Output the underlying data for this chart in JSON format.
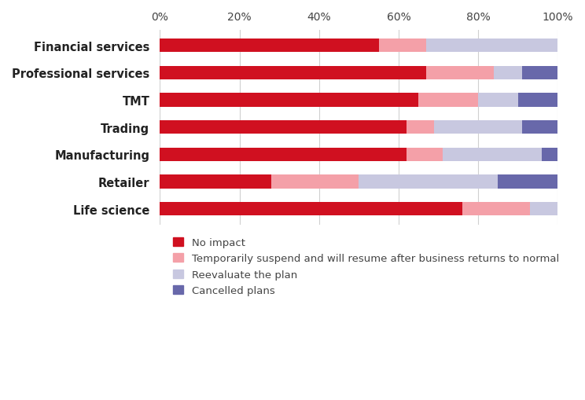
{
  "categories": [
    "Financial services",
    "Professional services",
    "TMT",
    "Trading",
    "Manufacturing",
    "Retailer",
    "Life science"
  ],
  "series": {
    "No impact": [
      55,
      67,
      65,
      62,
      62,
      28,
      76
    ],
    "Temporarily suspend and will resume after business returns to normal": [
      12,
      17,
      15,
      7,
      9,
      22,
      17
    ],
    "Reevaluate the plan": [
      33,
      7,
      10,
      22,
      25,
      35,
      7
    ],
    "Cancelled plans": [
      0,
      9,
      10,
      9,
      4,
      15,
      0
    ]
  },
  "colors": {
    "No impact": "#d01020",
    "Temporarily suspend and will resume after business returns to normal": "#f4a0a8",
    "Reevaluate the plan": "#c8c8e0",
    "Cancelled plans": "#6868aa"
  },
  "legend_order": [
    "No impact",
    "Temporarily suspend and will resume after business returns to normal",
    "Reevaluate the plan",
    "Cancelled plans"
  ],
  "xlim": [
    0,
    100
  ],
  "xtick_labels": [
    "0%",
    "20%",
    "40%",
    "60%",
    "80%",
    "100%"
  ],
  "xtick_values": [
    0,
    20,
    40,
    60,
    80,
    100
  ],
  "background_color": "#ffffff",
  "bar_height": 0.5,
  "grid_color": "#d0d0d0",
  "label_fontsize": 10,
  "legend_fontsize": 9.5
}
